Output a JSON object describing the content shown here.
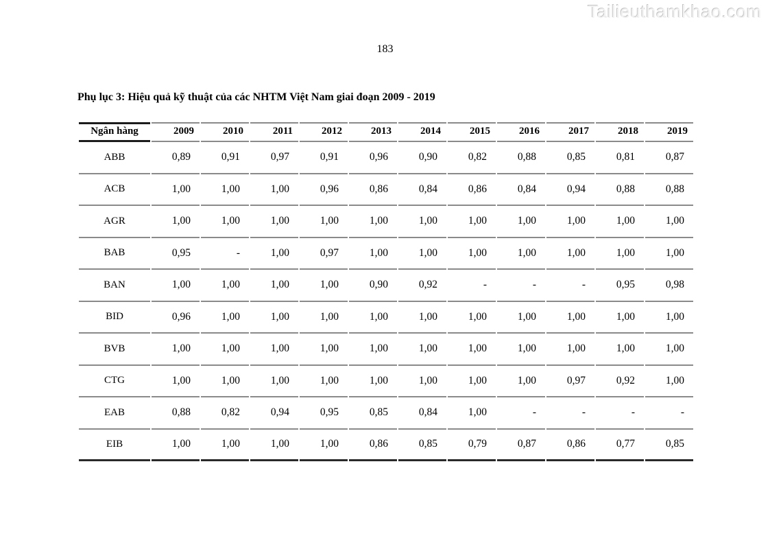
{
  "watermark": "Tailieuthamkhao.com",
  "page": {
    "number": "183"
  },
  "document": {
    "title": "Phụ lục 3: Hiệu quả kỹ thuật của các NHTM Việt Nam giai đoạn 2009 - 2019"
  },
  "table": {
    "columns": [
      "Ngân hàng",
      "2009",
      "2010",
      "2011",
      "2012",
      "2013",
      "2014",
      "2015",
      "2016",
      "2017",
      "2018",
      "2019"
    ],
    "rows": [
      {
        "bank": "ABB",
        "values": [
          "0,89",
          "0,91",
          "0,97",
          "0,91",
          "0,96",
          "0,90",
          "0,82",
          "0,88",
          "0,85",
          "0,81",
          "0,87"
        ]
      },
      {
        "bank": "ACB",
        "values": [
          "1,00",
          "1,00",
          "1,00",
          "0,96",
          "0,86",
          "0,84",
          "0,86",
          "0,84",
          "0,94",
          "0,88",
          "0,88"
        ]
      },
      {
        "bank": "AGR",
        "values": [
          "1,00",
          "1,00",
          "1,00",
          "1,00",
          "1,00",
          "1,00",
          "1,00",
          "1,00",
          "1,00",
          "1,00",
          "1,00"
        ]
      },
      {
        "bank": "BAB",
        "values": [
          "0,95",
          "-",
          "1,00",
          "0,97",
          "1,00",
          "1,00",
          "1,00",
          "1,00",
          "1,00",
          "1,00",
          "1,00"
        ]
      },
      {
        "bank": "BAN",
        "values": [
          "1,00",
          "1,00",
          "1,00",
          "1,00",
          "0,90",
          "0,92",
          "-",
          "-",
          "-",
          "0,95",
          "0,98"
        ]
      },
      {
        "bank": "BID",
        "values": [
          "0,96",
          "1,00",
          "1,00",
          "1,00",
          "1,00",
          "1,00",
          "1,00",
          "1,00",
          "1,00",
          "1,00",
          "1,00"
        ]
      },
      {
        "bank": "BVB",
        "values": [
          "1,00",
          "1,00",
          "1,00",
          "1,00",
          "1,00",
          "1,00",
          "1,00",
          "1,00",
          "1,00",
          "1,00",
          "1,00"
        ]
      },
      {
        "bank": "CTG",
        "values": [
          "1,00",
          "1,00",
          "1,00",
          "1,00",
          "1,00",
          "1,00",
          "1,00",
          "1,00",
          "0,97",
          "0,92",
          "1,00"
        ]
      },
      {
        "bank": "EAB",
        "values": [
          "0,88",
          "0,82",
          "0,94",
          "0,95",
          "0,85",
          "0,84",
          "1,00",
          "-",
          "-",
          "-",
          "-"
        ]
      },
      {
        "bank": "EIB",
        "values": [
          "1,00",
          "1,00",
          "1,00",
          "1,00",
          "0,86",
          "0,85",
          "0,79",
          "0,87",
          "0,86",
          "0,77",
          "0,85"
        ]
      }
    ]
  }
}
